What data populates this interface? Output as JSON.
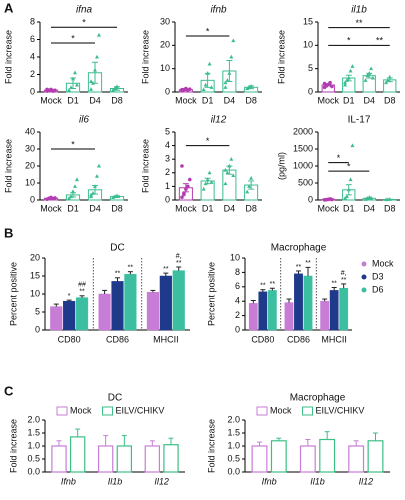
{
  "panel_labels": [
    "A",
    "B",
    "C"
  ],
  "chart_data": [
    {
      "type": "bar_scatter",
      "title": "ifna",
      "title_italic": true,
      "y_label": "Fold increase",
      "categories": [
        "Mock",
        "D1",
        "D4",
        "D8"
      ],
      "colors": [
        "#b23db0",
        "#3dbd8f",
        "#3dbd8f",
        "#3dbd8f"
      ],
      "values": [
        0.2,
        1.0,
        2.2,
        0.4
      ],
      "errors": [
        0.1,
        0.6,
        1.2,
        0.2
      ],
      "points": [
        [
          0.1,
          0.2,
          0.3,
          0.1,
          0.2,
          0.3,
          0.2
        ],
        [
          0.2,
          0.5,
          1.5,
          2.2,
          0.8
        ],
        [
          0.3,
          1,
          2.5,
          4,
          6.5,
          1.2
        ],
        [
          0.2,
          0.4,
          0.6
        ]
      ],
      "ylim": [
        0,
        8
      ],
      "yticks": [
        0,
        2,
        4,
        6,
        8
      ],
      "significance": [
        {
          "from": "Mock",
          "to": "D8",
          "y": 7.4,
          "label": "*"
        },
        {
          "from": "Mock",
          "to": "D4",
          "y": 5.6,
          "label": "*"
        }
      ]
    },
    {
      "type": "bar_scatter",
      "title": "ifnb",
      "title_italic": true,
      "y_label": "Fold increase",
      "categories": [
        "Mock",
        "D1",
        "D4",
        "D8"
      ],
      "colors": [
        "#b23db0",
        "#3dbd8f",
        "#3dbd8f",
        "#3dbd8f"
      ],
      "values": [
        1,
        5,
        9,
        2
      ],
      "errors": [
        0.4,
        3,
        4.5,
        0.6
      ],
      "points": [
        [
          0.5,
          1,
          1.5,
          0.8,
          1.2,
          1
        ],
        [
          1,
          3,
          8,
          12,
          2
        ],
        [
          2,
          5,
          8,
          15,
          22,
          4
        ],
        [
          1.5,
          2,
          2.5
        ]
      ],
      "ylim": [
        0,
        30
      ],
      "yticks": [
        0,
        10,
        20,
        30
      ],
      "significance": [
        {
          "from": "Mock",
          "to": "D4",
          "y": 24,
          "label": "*"
        }
      ]
    },
    {
      "type": "bar_scatter",
      "title": "il1b",
      "title_italic": true,
      "y_label": "Fold increase",
      "categories": [
        "Mock",
        "D1",
        "D4",
        "D8"
      ],
      "colors": [
        "#b23db0",
        "#3dbd8f",
        "#3dbd8f",
        "#3dbd8f"
      ],
      "values": [
        1.5,
        3,
        3.5,
        2.6
      ],
      "errors": [
        0.2,
        0.6,
        0.5,
        0.4
      ],
      "points": [
        [
          1,
          1.3,
          1.6,
          2,
          1.2,
          1.8,
          1.5
        ],
        [
          1.5,
          2.5,
          3,
          4.5,
          5.5,
          2
        ],
        [
          2.5,
          3.5,
          4,
          5,
          3
        ],
        [
          2,
          2.5,
          3.2
        ]
      ],
      "ylim": [
        0,
        15
      ],
      "yticks": [
        0,
        5,
        10,
        15
      ],
      "significance": [
        {
          "from": "Mock",
          "to": "D8",
          "y": 13.8,
          "label": "**"
        },
        {
          "from": "Mock",
          "to": "D4",
          "y": 10,
          "label": "*"
        },
        {
          "from": "D4",
          "to": "D8",
          "y": 10,
          "label": "**"
        }
      ]
    },
    {
      "type": "bar_scatter",
      "title": "il6",
      "title_italic": true,
      "y_label": "Fold increase",
      "categories": [
        "Mock",
        "D1",
        "D4",
        "D8"
      ],
      "colors": [
        "#b23db0",
        "#3dbd8f",
        "#3dbd8f",
        "#3dbd8f"
      ],
      "values": [
        1,
        3,
        6,
        2
      ],
      "errors": [
        0.3,
        1.2,
        2.5,
        0.5
      ],
      "points": [
        [
          0.5,
          1,
          1.5,
          0.8,
          1.2
        ],
        [
          1,
          2,
          5,
          8,
          12
        ],
        [
          2,
          4,
          8,
          14,
          20,
          3
        ],
        [
          1.5,
          2,
          2.5
        ]
      ],
      "ylim": [
        0,
        40
      ],
      "yticks": [
        0,
        10,
        20,
        30,
        40
      ],
      "significance": [
        {
          "from": "Mock",
          "to": "D4",
          "y": 30,
          "label": "*"
        }
      ]
    },
    {
      "type": "bar_scatter",
      "title": "il12",
      "title_italic": true,
      "y_label": "Fold increase",
      "categories": [
        "Mock",
        "D1",
        "D4",
        "D8"
      ],
      "colors": [
        "#b23db0",
        "#3dbd8f",
        "#3dbd8f",
        "#3dbd8f"
      ],
      "values": [
        0.9,
        1.4,
        2.2,
        1.1
      ],
      "errors": [
        0.3,
        0.2,
        0.3,
        0.3
      ],
      "points": [
        [
          0.2,
          0.5,
          0.8,
          1,
          1.5,
          2.5,
          0.4
        ],
        [
          0.8,
          1.2,
          1.5,
          2,
          1.3
        ],
        [
          1.2,
          2,
          2.5,
          3,
          1.8,
          2.2
        ],
        [
          0.6,
          1,
          1.6
        ]
      ],
      "ylim": [
        0,
        5
      ],
      "yticks": [
        0,
        1,
        2,
        3,
        4,
        5
      ],
      "significance": [
        {
          "from": "Mock",
          "to": "D4",
          "y": 4,
          "label": "*"
        }
      ]
    },
    {
      "type": "bar_scatter",
      "title": "IL-17",
      "title_italic": false,
      "y_label": "(pg/ml)",
      "categories": [
        "Mock",
        "D1",
        "D4",
        "D8"
      ],
      "colors": [
        "#b23db0",
        "#3dbd8f",
        "#3dbd8f",
        "#3dbd8f"
      ],
      "values": [
        20,
        300,
        50,
        15
      ],
      "errors": [
        10,
        150,
        20,
        5
      ],
      "points": [
        [
          5,
          10,
          20,
          30,
          15
        ],
        [
          50,
          100,
          300,
          600,
          1600
        ],
        [
          20,
          50,
          80,
          60
        ],
        [
          10,
          15,
          20
        ]
      ],
      "ylim": [
        0,
        2000
      ],
      "yticks": [
        0,
        500,
        1000,
        1500,
        2000
      ],
      "significance": [
        {
          "from": "Mock",
          "to": "D1",
          "y": 1100,
          "label": "*"
        },
        {
          "from": "Mock",
          "to": "D4",
          "y": 850,
          "label": "*"
        }
      ]
    },
    {
      "type": "grouped_bar",
      "title": "DC",
      "y_label": "Percent positive",
      "categories": [
        "CD80",
        "CD86",
        "MHCII"
      ],
      "bar_style": "filled",
      "separators": true,
      "legend": null,
      "ylim": [
        0,
        20
      ],
      "yticks": [
        0,
        5,
        10,
        15,
        20
      ],
      "series": [
        {
          "name": "Mock",
          "color": "#c77dd6",
          "values": [
            6.5,
            10,
            10.5
          ],
          "errors": [
            0.7,
            1,
            0.5
          ],
          "annotations": [
            null,
            null,
            null
          ]
        },
        {
          "name": "D3",
          "color": "#1f3a8a",
          "values": [
            8,
            13.5,
            15
          ],
          "errors": [
            0.3,
            1,
            0.8
          ],
          "annotations": [
            [
              "*"
            ],
            [
              "**"
            ],
            [
              "**"
            ]
          ]
        },
        {
          "name": "D6",
          "color": "#3cbfa0",
          "values": [
            9,
            15.5,
            16.5
          ],
          "errors": [
            0.5,
            0.7,
            1
          ],
          "annotations": [
            [
              "##",
              "**"
            ],
            [
              "**"
            ],
            [
              "#,",
              "**"
            ]
          ]
        }
      ]
    },
    {
      "type": "grouped_bar",
      "title": "Macrophage",
      "y_label": "Percent positive",
      "categories": [
        "CD80",
        "CD86",
        "MHCII"
      ],
      "bar_style": "filled",
      "separators": true,
      "legend": "right",
      "ylim": [
        0,
        10
      ],
      "yticks": [
        0,
        2,
        4,
        6,
        8,
        10
      ],
      "series": [
        {
          "name": "Mock",
          "color": "#c77dd6",
          "values": [
            3.7,
            3.8,
            4
          ],
          "errors": [
            0.4,
            0.5,
            0.3
          ],
          "annotations": [
            null,
            null,
            null
          ]
        },
        {
          "name": "D3",
          "color": "#1f3a8a",
          "values": [
            5.3,
            7.8,
            5.5
          ],
          "errors": [
            0.3,
            0.4,
            0.4
          ],
          "annotations": [
            [
              "**"
            ],
            [
              "**"
            ],
            [
              "**"
            ]
          ]
        },
        {
          "name": "D6",
          "color": "#3cbfa0",
          "values": [
            5.5,
            7.5,
            5.8
          ],
          "errors": [
            0.3,
            1.2,
            0.6
          ],
          "annotations": [
            [
              "**"
            ],
            [
              "**"
            ],
            [
              "#,",
              "**"
            ]
          ]
        }
      ]
    },
    {
      "type": "grouped_bar",
      "title": "DC",
      "y_label": "Fold increase",
      "categories": [
        "Ifnb",
        "Il1b",
        "Il12"
      ],
      "category_italic": true,
      "bar_style": "outline",
      "separators": false,
      "legend": "top",
      "ylim": [
        0,
        2
      ],
      "yticks": [
        {
          "value": 0,
          "label": "0.0"
        },
        {
          "value": 0.5,
          "label": "0.5"
        },
        {
          "value": 1,
          "label": "1.0"
        },
        {
          "value": 1.5,
          "label": "1.5"
        },
        {
          "value": 2,
          "label": "2.0"
        }
      ],
      "series": [
        {
          "name": "Mock",
          "color": "#c77dd6",
          "values": [
            1,
            1,
            1
          ],
          "errors": [
            0.2,
            0.4,
            0.2
          ]
        },
        {
          "name": "EILV/CHIKV",
          "color": "#3cbf85",
          "values": [
            1.35,
            1.0,
            1.05
          ],
          "errors": [
            0.3,
            0.4,
            0.25
          ]
        }
      ]
    },
    {
      "type": "grouped_bar",
      "title": "Macrophage",
      "y_label": "Fold increase",
      "categories": [
        "Ifnb",
        "Il1b",
        "Il12"
      ],
      "category_italic": true,
      "bar_style": "outline",
      "separators": false,
      "legend": "top",
      "ylim": [
        0,
        2
      ],
      "yticks": [
        {
          "value": 0,
          "label": "0.0"
        },
        {
          "value": 0.5,
          "label": "0.5"
        },
        {
          "value": 1,
          "label": "1.0"
        },
        {
          "value": 1.5,
          "label": "1.5"
        },
        {
          "value": 2,
          "label": "2.0"
        }
      ],
      "series": [
        {
          "name": "Mock",
          "color": "#c77dd6",
          "values": [
            1,
            1,
            1
          ],
          "errors": [
            0.15,
            0.25,
            0.2
          ]
        },
        {
          "name": "EILV/CHIKV",
          "color": "#3cbf85",
          "values": [
            1.2,
            1.25,
            1.2
          ],
          "errors": [
            0.1,
            0.3,
            0.3
          ]
        }
      ]
    }
  ]
}
